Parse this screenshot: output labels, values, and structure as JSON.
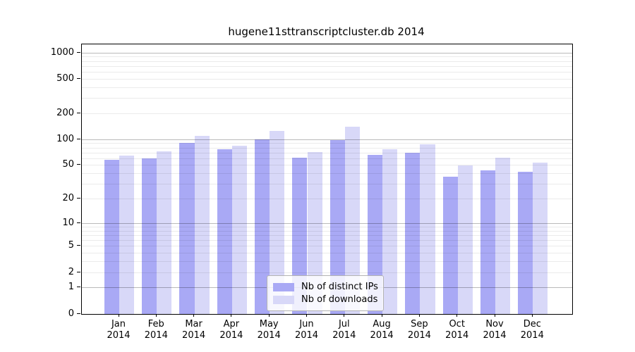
{
  "chart_data": {
    "type": "bar",
    "title": "hugene11sttranscriptcluster.db 2014",
    "categories": [
      "Jan",
      "Feb",
      "Mar",
      "Apr",
      "May",
      "Jun",
      "Jul",
      "Aug",
      "Sep",
      "Oct",
      "Nov",
      "Dec"
    ],
    "x_year_label": "2014",
    "series": [
      {
        "name": "Nb of distinct IPs",
        "color": "#a9a9f5",
        "values": [
          58,
          60,
          91,
          77,
          100,
          61,
          99,
          66,
          70,
          37,
          44,
          42
        ]
      },
      {
        "name": "Nb of downloads",
        "color": "#d8d8f8",
        "values": [
          65,
          73,
          110,
          85,
          125,
          72,
          140,
          77,
          88,
          50,
          62,
          54
        ]
      }
    ],
    "yscale": "log10(1+x)",
    "yticks": [
      1000,
      500,
      200,
      100,
      50,
      20,
      10,
      5,
      2,
      1,
      0
    ],
    "ylim": [
      0,
      1250
    ],
    "grid": {
      "major": [
        1,
        10,
        100,
        1000
      ],
      "minor": [
        2,
        3,
        4,
        5,
        6,
        7,
        8,
        9,
        20,
        30,
        40,
        50,
        60,
        70,
        80,
        90,
        200,
        300,
        400,
        500,
        600,
        700,
        800,
        900
      ],
      "major_color": "rgba(0,0,0,0.27)",
      "minor_color": "rgba(0,0,0,0.08)"
    },
    "legend": {
      "position": "bottom-center"
    }
  }
}
